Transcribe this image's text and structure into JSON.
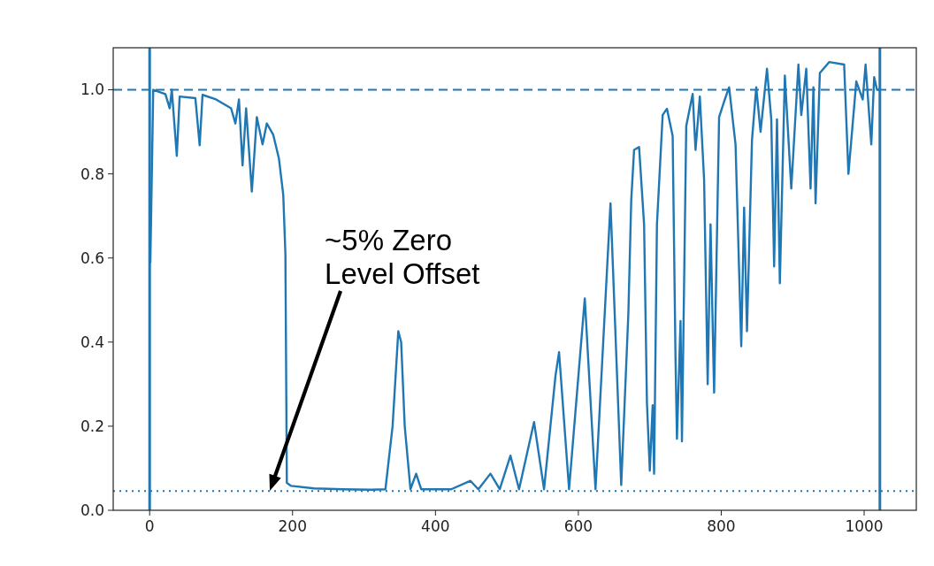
{
  "chart_data": {
    "type": "line",
    "x": [
      0,
      1,
      5,
      22,
      28,
      31,
      38,
      42,
      64,
      70,
      74,
      93,
      114,
      120,
      125,
      130,
      135,
      143,
      150,
      158,
      164,
      173,
      181,
      187,
      190,
      192,
      198,
      230,
      270,
      310,
      330,
      340,
      348,
      352,
      357,
      365,
      373,
      380,
      395,
      422,
      449,
      460,
      477,
      490,
      505,
      517,
      538,
      552,
      568,
      573,
      587,
      609,
      624,
      645,
      660,
      670,
      674,
      678,
      685,
      692,
      696,
      700,
      704,
      706,
      710,
      718,
      724,
      732,
      736,
      738,
      743,
      745,
      751,
      760,
      764,
      770,
      776,
      781,
      785,
      790,
      797,
      805,
      811,
      820,
      828,
      832,
      836,
      843,
      849,
      855,
      864,
      870,
      874,
      878,
      882,
      889,
      898,
      908,
      912,
      919,
      925,
      929,
      932,
      938,
      951,
      972,
      978,
      983,
      989,
      998,
      1002,
      1010,
      1014,
      1018,
      1022
    ],
    "series": [
      {
        "color": "#1f77b4",
        "values": [
          0.6,
          0.59,
          1.0,
          0.99,
          0.956,
          1.0,
          0.843,
          0.984,
          0.98,
          0.868,
          0.988,
          0.977,
          0.956,
          0.92,
          0.977,
          0.82,
          0.956,
          0.758,
          0.935,
          0.87,
          0.92,
          0.893,
          0.836,
          0.75,
          0.61,
          0.065,
          0.058,
          0.052,
          0.05,
          0.049,
          0.05,
          0.2,
          0.426,
          0.4,
          0.2,
          0.05,
          0.087,
          0.05,
          0.05,
          0.05,
          0.07,
          0.05,
          0.087,
          0.05,
          0.13,
          0.05,
          0.21,
          0.05,
          0.32,
          0.376,
          0.05,
          0.504,
          0.05,
          0.73,
          0.06,
          0.468,
          0.737,
          0.857,
          0.864,
          0.68,
          0.256,
          0.094,
          0.25,
          0.087,
          0.68,
          0.94,
          0.955,
          0.89,
          0.36,
          0.17,
          0.45,
          0.164,
          0.914,
          0.99,
          0.857,
          0.984,
          0.786,
          0.3,
          0.68,
          0.28,
          0.935,
          0.977,
          1.006,
          0.87,
          0.39,
          0.72,
          0.426,
          0.88,
          1.006,
          0.9,
          1.05,
          0.93,
          0.58,
          0.93,
          0.54,
          1.034,
          0.765,
          1.06,
          0.94,
          1.05,
          0.765,
          1.006,
          0.73,
          1.04,
          1.066,
          1.06,
          0.8,
          0.9,
          1.02,
          0.977,
          1.06,
          0.87,
          1.03,
          1.0,
          1.0
        ]
      }
    ],
    "xlim": [
      -51,
      1073
    ],
    "ylim": [
      0,
      1.1
    ],
    "xticks": [
      0,
      200,
      400,
      600,
      800,
      1000
    ],
    "yticks": [
      {
        "value": 0,
        "label": "0.0"
      },
      {
        "value": 0.2,
        "label": "0.2"
      },
      {
        "value": 0.4,
        "label": "0.4"
      },
      {
        "value": 0.6,
        "label": "0.6"
      },
      {
        "value": 0.8,
        "label": "0.8"
      },
      {
        "value": 1,
        "label": "1.0"
      }
    ],
    "ref_lines": [
      {
        "axis": "x",
        "value": 0,
        "color": "#1f77b4",
        "line_style": "solid"
      },
      {
        "axis": "x",
        "value": 1022,
        "color": "#1f77b4",
        "line_style": "solid"
      },
      {
        "axis": "y",
        "value": 1,
        "color": "#1f77b4",
        "line_style": "dashed"
      },
      {
        "axis": "y",
        "value": 0.046,
        "color": "#1f77b4",
        "line_style": "dotted"
      }
    ],
    "annotations": [
      "~5% Zero\nLevel Offset"
    ],
    "grid": false,
    "marker": "none",
    "line_style": "solid"
  }
}
